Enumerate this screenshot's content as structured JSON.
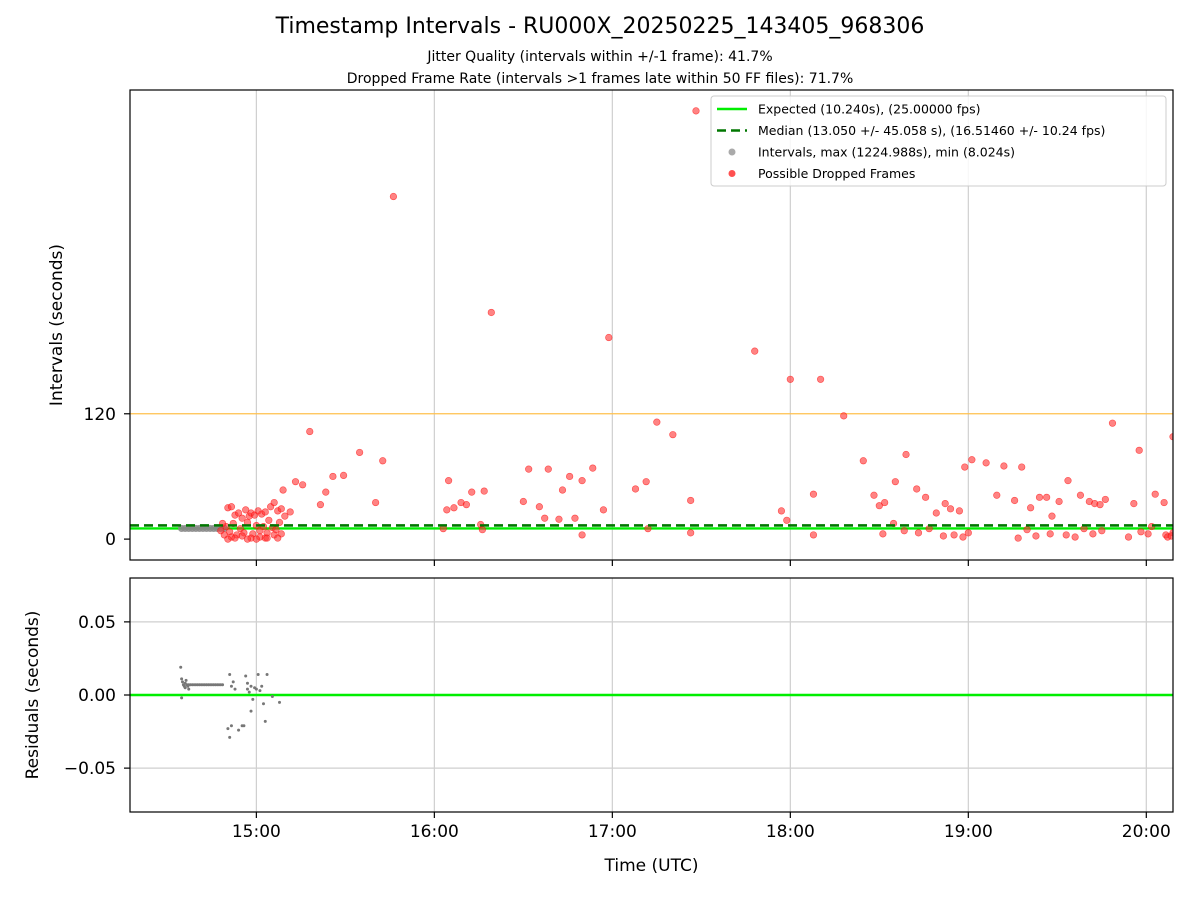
{
  "chart_data": [
    {
      "type": "scatter",
      "title": "Timestamp Intervals - RU000X_20250225_143405_968306",
      "subtitle_lines": [
        "Jitter Quality (intervals within +/-1 frame): 41.7%",
        "Dropped Frame Rate (intervals >1 frames late within 50 FF files): 71.7%"
      ],
      "xlabel": "",
      "ylabel": "Intervals (seconds)",
      "x_unit": "hours (UTC)",
      "xlim": [
        14.29,
        20.15
      ],
      "ylim": [
        -20,
        430
      ],
      "x_ticks": [
        15,
        16,
        17,
        18,
        19,
        20
      ],
      "x_tick_labels": [
        "15:00",
        "16:00",
        "17:00",
        "18:00",
        "19:00",
        "20:00"
      ],
      "y_ticks": [
        0,
        120
      ],
      "y_tick_labels": [
        "0",
        "120"
      ],
      "grid": "vertical",
      "legend_position": "upper right",
      "reference_lines": [
        {
          "name": "Expected (10.240s), (25.00000 fps)",
          "y": 10.24,
          "color": "#00ee00",
          "style": "solid"
        },
        {
          "name": "Median (13.050 +/- 45.058 s), (16.51460 +/- 10.24 fps)",
          "y": 13.05,
          "color": "#007700",
          "style": "dashed"
        },
        {
          "name": "threshold",
          "y": 120,
          "color": "#ffc04d",
          "style": "solid"
        }
      ],
      "series": [
        {
          "name": "Intervals, max (1224.988s), min (8.024s)",
          "color": "#888888",
          "points": [
            [
              14.58,
              10.24
            ],
            [
              14.6,
              10.24
            ],
            [
              14.62,
              10.24
            ],
            [
              14.64,
              10.24
            ],
            [
              14.66,
              10.24
            ],
            [
              14.68,
              10.24
            ],
            [
              14.7,
              10.24
            ],
            [
              14.72,
              10.24
            ],
            [
              14.74,
              10.24
            ],
            [
              14.76,
              10.24
            ],
            [
              14.78,
              10.24
            ],
            [
              14.8,
              10.24
            ],
            [
              14.82,
              10.24
            ]
          ]
        },
        {
          "name": "Possible Dropped Frames",
          "color": "#ff2020",
          "points": [
            [
              17.47,
              410
            ],
            [
              15.77,
              328
            ],
            [
              16.32,
              217
            ],
            [
              16.98,
              193
            ],
            [
              17.8,
              180
            ],
            [
              18.0,
              153
            ],
            [
              18.17,
              153
            ],
            [
              18.3,
              118
            ],
            [
              17.25,
              112
            ],
            [
              17.34,
              100
            ],
            [
              15.3,
              103
            ],
            [
              15.58,
              83
            ],
            [
              15.71,
              75
            ],
            [
              15.22,
              55
            ],
            [
              15.26,
              52
            ],
            [
              15.15,
              47
            ],
            [
              15.43,
              60
            ],
            [
              15.49,
              61
            ],
            [
              15.39,
              45
            ],
            [
              15.67,
              35
            ],
            [
              15.36,
              33
            ],
            [
              16.08,
              56
            ],
            [
              16.21,
              45
            ],
            [
              16.15,
              35
            ],
            [
              16.18,
              33
            ],
            [
              16.28,
              46
            ],
            [
              16.11,
              30
            ],
            [
              16.07,
              28
            ],
            [
              16.05,
              10
            ],
            [
              16.26,
              14
            ],
            [
              16.27,
              9
            ],
            [
              16.53,
              67
            ],
            [
              16.64,
              67
            ],
            [
              16.76,
              60
            ],
            [
              16.83,
              56
            ],
            [
              16.89,
              68
            ],
            [
              16.72,
              47
            ],
            [
              16.5,
              36
            ],
            [
              16.59,
              31
            ],
            [
              16.95,
              28
            ],
            [
              16.62,
              20
            ],
            [
              16.79,
              20
            ],
            [
              16.7,
              19
            ],
            [
              16.83,
              4
            ],
            [
              17.13,
              48
            ],
            [
              17.19,
              55
            ],
            [
              17.44,
              37
            ],
            [
              17.2,
              10
            ],
            [
              17.44,
              6
            ],
            [
              17.95,
              27
            ],
            [
              17.98,
              18
            ],
            [
              18.13,
              43
            ],
            [
              18.13,
              4
            ],
            [
              18.41,
              75
            ],
            [
              18.47,
              42
            ],
            [
              18.5,
              32
            ],
            [
              18.53,
              35
            ],
            [
              18.59,
              55
            ],
            [
              18.65,
              81
            ],
            [
              18.71,
              48
            ],
            [
              18.76,
              40
            ],
            [
              18.82,
              25
            ],
            [
              18.87,
              34
            ],
            [
              18.9,
              29
            ],
            [
              18.95,
              27
            ],
            [
              18.98,
              69
            ],
            [
              19.02,
              76
            ],
            [
              19.1,
              73
            ],
            [
              19.2,
              70
            ],
            [
              19.3,
              69
            ],
            [
              19.16,
              42
            ],
            [
              19.26,
              37
            ],
            [
              19.35,
              30
            ],
            [
              19.4,
              40
            ],
            [
              19.44,
              40
            ],
            [
              19.47,
              22
            ],
            [
              19.51,
              36
            ],
            [
              19.56,
              56
            ],
            [
              19.63,
              42
            ],
            [
              19.68,
              36
            ],
            [
              19.71,
              34
            ],
            [
              19.74,
              33
            ],
            [
              19.77,
              38
            ],
            [
              19.81,
              111
            ],
            [
              19.93,
              34
            ],
            [
              19.96,
              85
            ],
            [
              20.05,
              43
            ],
            [
              20.1,
              35
            ],
            [
              20.15,
              98
            ],
            [
              20.03,
              12
            ],
            [
              20.11,
              4
            ],
            [
              20.12,
              2
            ],
            [
              18.52,
              5
            ],
            [
              18.58,
              15
            ],
            [
              18.64,
              8
            ],
            [
              18.72,
              6
            ],
            [
              18.78,
              10
            ],
            [
              18.86,
              3
            ],
            [
              18.92,
              4
            ],
            [
              18.97,
              2
            ],
            [
              19.0,
              6
            ],
            [
              19.28,
              1
            ],
            [
              19.33,
              9
            ],
            [
              19.38,
              3
            ],
            [
              19.46,
              5
            ],
            [
              19.55,
              4
            ],
            [
              19.6,
              2
            ],
            [
              19.65,
              10
            ],
            [
              19.7,
              5
            ],
            [
              19.75,
              8
            ],
            [
              19.9,
              2
            ],
            [
              19.97,
              7
            ],
            [
              20.01,
              5
            ],
            [
              20.15,
              6
            ],
            [
              20.14,
              3
            ],
            [
              14.84,
              30
            ],
            [
              14.86,
              31
            ],
            [
              14.88,
              23
            ],
            [
              14.9,
              25
            ],
            [
              14.92,
              20
            ],
            [
              14.94,
              28
            ],
            [
              14.96,
              22
            ],
            [
              14.97,
              25
            ],
            [
              14.99,
              23
            ],
            [
              15.01,
              27
            ],
            [
              15.03,
              24
            ],
            [
              15.05,
              26
            ],
            [
              15.08,
              31
            ],
            [
              15.1,
              35
            ],
            [
              15.12,
              27
            ],
            [
              15.14,
              29
            ],
            [
              15.16,
              22
            ],
            [
              15.19,
              26
            ],
            [
              14.83,
              12
            ],
            [
              14.85,
              7
            ],
            [
              14.87,
              15
            ],
            [
              14.89,
              4
            ],
            [
              14.91,
              10
            ],
            [
              14.93,
              6
            ],
            [
              14.95,
              16
            ],
            [
              14.98,
              5
            ],
            [
              15.0,
              13
            ],
            [
              15.02,
              8
            ],
            [
              15.04,
              12
            ],
            [
              15.06,
              6
            ],
            [
              15.07,
              18
            ],
            [
              15.09,
              11
            ],
            [
              15.11,
              9
            ],
            [
              15.13,
              16
            ],
            [
              14.86,
              2
            ],
            [
              14.92,
              3
            ],
            [
              14.97,
              1
            ],
            [
              15.02,
              2
            ],
            [
              15.05,
              1
            ],
            [
              15.1,
              4
            ],
            [
              15.14,
              5
            ],
            [
              14.81,
              15
            ],
            [
              14.8,
              8
            ],
            [
              14.82,
              4
            ],
            [
              14.84,
              0
            ],
            [
              14.88,
              1
            ],
            [
              14.95,
              0
            ],
            [
              15.0,
              0
            ],
            [
              15.06,
              1
            ],
            [
              15.12,
              1
            ]
          ]
        }
      ]
    },
    {
      "type": "scatter",
      "xlabel": "Time (UTC)",
      "ylabel": "Residuals (seconds)",
      "x_unit": "hours (UTC)",
      "xlim": [
        14.29,
        20.15
      ],
      "ylim": [
        -0.08,
        0.08
      ],
      "x_ticks": [
        15,
        16,
        17,
        18,
        19,
        20
      ],
      "x_tick_labels": [
        "15:00",
        "16:00",
        "17:00",
        "18:00",
        "19:00",
        "20:00"
      ],
      "y_ticks": [
        0.05,
        0.0,
        -0.05
      ],
      "y_tick_labels": [
        "0.05",
        "0.00",
        "−0.05"
      ],
      "grid": "both",
      "reference_lines": [
        {
          "name": "zero",
          "y": 0,
          "color": "#00ee00",
          "style": "solid"
        }
      ],
      "series": [
        {
          "name": "residuals",
          "color": "#777777",
          "points": [
            [
              14.575,
              0.019
            ],
            [
              14.58,
              0.011
            ],
            [
              14.585,
              0.009
            ],
            [
              14.59,
              0.007
            ],
            [
              14.595,
              0.006
            ],
            [
              14.6,
              0.008
            ],
            [
              14.605,
              0.01
            ],
            [
              14.61,
              0.007
            ],
            [
              14.615,
              0.006
            ],
            [
              14.62,
              0.007
            ],
            [
              14.63,
              0.007
            ],
            [
              14.64,
              0.007
            ],
            [
              14.65,
              0.007
            ],
            [
              14.66,
              0.007
            ],
            [
              14.67,
              0.007
            ],
            [
              14.68,
              0.007
            ],
            [
              14.69,
              0.007
            ],
            [
              14.7,
              0.007
            ],
            [
              14.71,
              0.007
            ],
            [
              14.72,
              0.007
            ],
            [
              14.73,
              0.007
            ],
            [
              14.74,
              0.007
            ],
            [
              14.75,
              0.007
            ],
            [
              14.76,
              0.007
            ],
            [
              14.77,
              0.007
            ],
            [
              14.78,
              0.007
            ],
            [
              14.79,
              0.007
            ],
            [
              14.8,
              0.007
            ],
            [
              14.81,
              0.007
            ],
            [
              14.58,
              -0.002
            ],
            [
              14.6,
              0.005
            ],
            [
              14.62,
              0.004
            ],
            [
              14.85,
              0.014
            ],
            [
              14.86,
              0.006
            ],
            [
              14.87,
              0.009
            ],
            [
              14.88,
              0.004
            ],
            [
              14.84,
              -0.023
            ],
            [
              14.86,
              -0.021
            ],
            [
              14.85,
              -0.029
            ],
            [
              14.9,
              -0.024
            ],
            [
              14.92,
              -0.021
            ],
            [
              14.93,
              -0.021
            ],
            [
              14.94,
              0.013
            ],
            [
              14.95,
              0.004
            ],
            [
              14.96,
              0.002
            ],
            [
              14.97,
              0.006
            ],
            [
              14.95,
              0.008
            ],
            [
              14.98,
              -0.003
            ],
            [
              14.99,
              0.005
            ],
            [
              14.97,
              -0.011
            ],
            [
              15.0,
              0.004
            ],
            [
              15.01,
              0.014
            ],
            [
              15.02,
              0.003
            ],
            [
              15.03,
              0.006
            ],
            [
              15.04,
              -0.006
            ],
            [
              15.05,
              -0.018
            ],
            [
              15.06,
              0.014
            ],
            [
              15.09,
              -0.001
            ],
            [
              15.13,
              -0.005
            ]
          ]
        }
      ]
    }
  ],
  "legend": {
    "entries": [
      {
        "label": "Expected (10.240s), (25.00000 fps)",
        "marker": "line",
        "color": "#00ee00"
      },
      {
        "label": "Median (13.050 +/- 45.058 s), (16.51460 +/- 10.24 fps)",
        "marker": "dashed",
        "color": "#007700"
      },
      {
        "label": "Intervals, max (1224.988s), min (8.024s)",
        "marker": "dot",
        "color": "#aaaaaa"
      },
      {
        "label": "Possible Dropped Frames",
        "marker": "dot",
        "color": "#ff5050"
      }
    ]
  }
}
